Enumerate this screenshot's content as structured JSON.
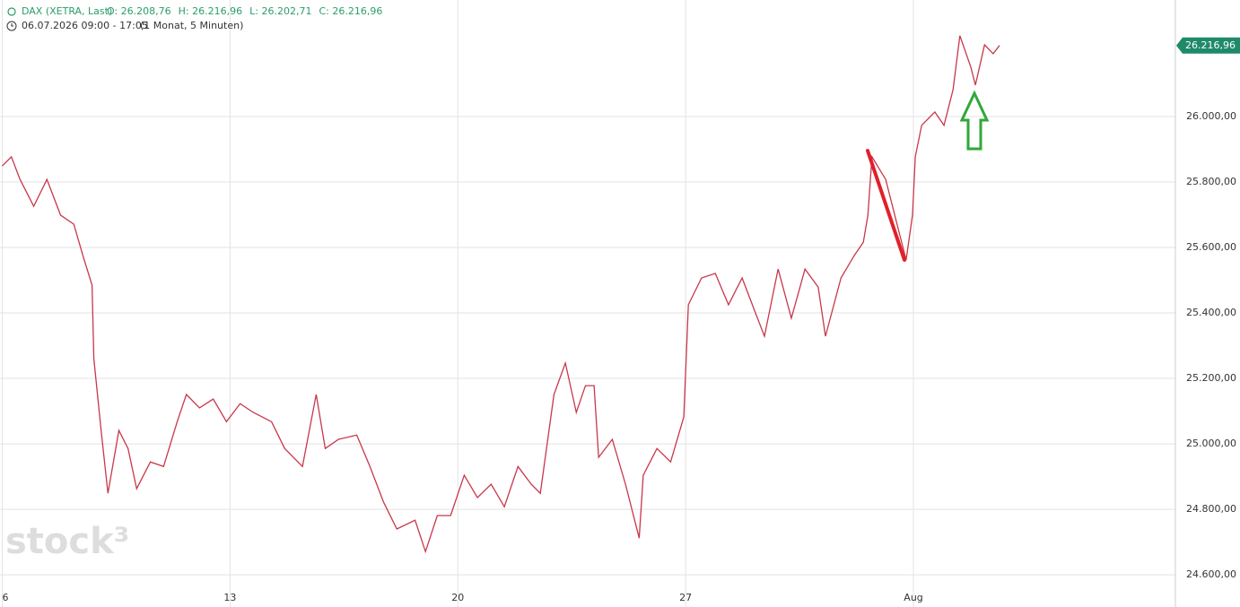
{
  "chart_data": {
    "type": "line",
    "instrument": "DAX (XETRA, Last)",
    "ohlc": [
      "O: 26.208,76",
      "H: 26.216,96",
      "L: 26.202,71",
      "C: 26.216,96"
    ],
    "period": "06.07.2026 09:00 - 17:05",
    "interval": "(1 Monat, 5 Minuten)",
    "watermark": "stock³",
    "color": "#c8374a",
    "x": [
      0.0,
      0.2,
      0.39,
      0.69,
      0.98,
      1.28,
      1.57,
      1.77,
      1.97,
      2.01,
      2.17,
      2.32,
      2.56,
      2.76,
      2.95,
      3.25,
      3.54,
      3.84,
      4.04,
      4.33,
      4.63,
      4.92,
      5.22,
      5.51,
      5.91,
      6.2,
      6.59,
      6.89,
      7.09,
      7.38,
      7.78,
      8.07,
      8.37,
      8.66,
      9.06,
      9.29,
      9.55,
      9.84,
      10.14,
      10.43,
      10.73,
      11.02,
      11.32,
      11.61,
      11.81,
      12.11,
      12.36,
      12.6,
      12.8,
      12.99,
      13.09,
      13.39,
      13.68,
      13.98,
      14.07,
      14.37,
      14.67,
      14.96,
      15.06,
      15.35,
      15.65,
      15.94,
      16.24,
      16.54,
      16.73,
      17.03,
      17.32,
      17.62,
      17.91,
      18.07,
      18.41,
      18.7,
      18.9,
      19.0,
      19.09,
      19.39,
      19.69,
      19.84,
      19.98,
      20.04,
      20.18,
      20.47,
      20.67,
      20.87,
      21.02,
      21.26,
      21.36,
      21.56,
      21.75,
      21.89
    ],
    "values": [
      25849,
      25877,
      25808,
      25726,
      25808,
      25699,
      25671,
      25575,
      25485,
      25260,
      25041,
      24849,
      25041,
      24986,
      24863,
      24945,
      24931,
      25068,
      25151,
      25110,
      25137,
      25068,
      25123,
      25096,
      25068,
      24986,
      24931,
      25151,
      24986,
      25014,
      25027,
      24931,
      24822,
      24740,
      24767,
      24671,
      24781,
      24781,
      24904,
      24836,
      24877,
      24808,
      24931,
      24877,
      24849,
      25151,
      25247,
      25096,
      25178,
      25178,
      24959,
      25014,
      24877,
      24712,
      24904,
      24986,
      24945,
      25082,
      25425,
      25507,
      25521,
      25425,
      25507,
      25397,
      25329,
      25534,
      25384,
      25534,
      25479,
      25329,
      25507,
      25575,
      25616,
      25699,
      25877,
      25808,
      25644,
      25562,
      25699,
      25877,
      25973,
      26014,
      25973,
      26082,
      26247,
      26151,
      26096,
      26219,
      26192,
      26217
    ],
    "last_price": {
      "value": 26216.96,
      "label": "26.216,96"
    },
    "xlim": [
      -0.05,
      25.75
    ],
    "xticks": [
      {
        "value": 0,
        "label": "6"
      },
      {
        "value": 5,
        "label": "13"
      },
      {
        "value": 10,
        "label": "20"
      },
      {
        "value": 15,
        "label": "27"
      },
      {
        "value": 20,
        "label": "Aug"
      }
    ],
    "ylim": [
      24562,
      26356
    ],
    "yticks": [
      {
        "value": 24600,
        "label": "24.600,00"
      },
      {
        "value": 24800,
        "label": "24.800,00"
      },
      {
        "value": 25000,
        "label": "25.000,00"
      },
      {
        "value": 25200,
        "label": "25.200,00"
      },
      {
        "value": 25400,
        "label": "25.400,00"
      },
      {
        "value": 25600,
        "label": "25.600,00"
      },
      {
        "value": 25800,
        "label": "25.800,00"
      },
      {
        "value": 26000,
        "label": "26.000,00"
      }
    ],
    "grid": true
  }
}
